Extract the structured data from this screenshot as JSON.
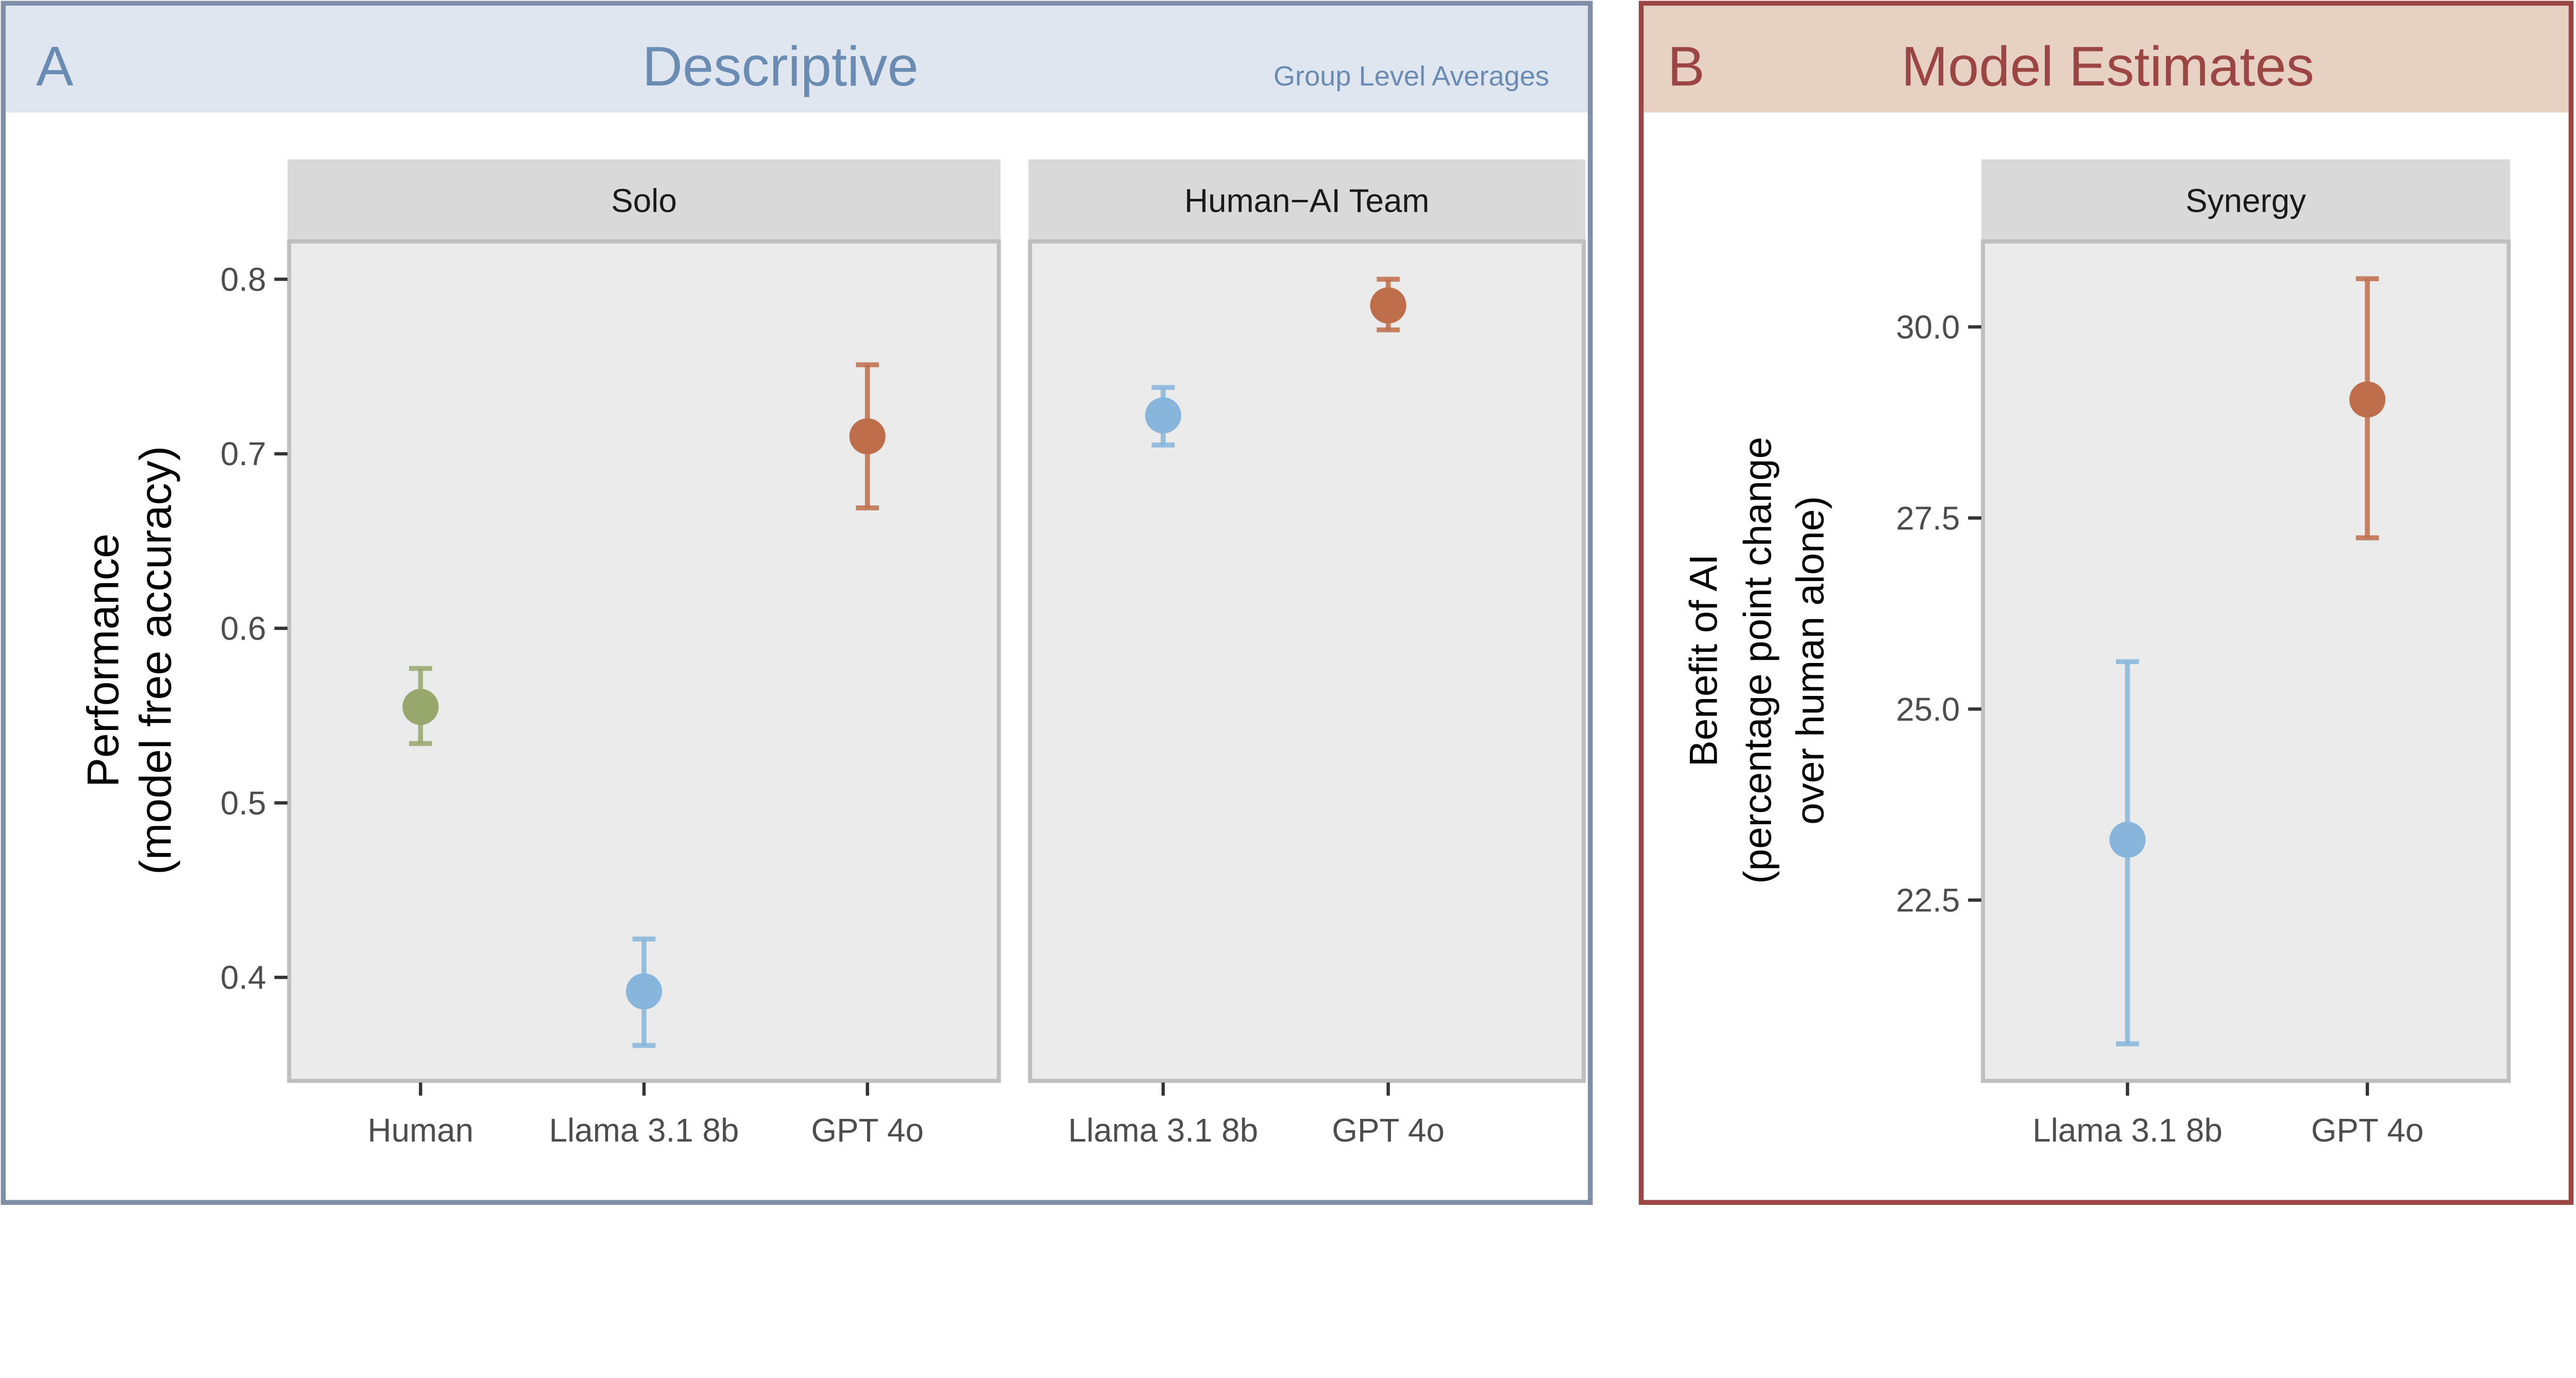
{
  "panel_a": {
    "letter": "A",
    "title": "Descriptive",
    "subtitle": "Group Level Averages",
    "header_color": "#dfe6ef",
    "border_color": "#7f8fa8",
    "title_color": "#6a8cb3"
  },
  "panel_b": {
    "letter": "B",
    "title": "Model Estimates",
    "header_color": "#e7d1c2",
    "border_color": "#9b4545",
    "title_color": "#9b4545"
  },
  "colors": {
    "Human": "#98a86d",
    "Llama 3.1 8b": "#87b5db",
    "GPT 4o": "#bf6e4b"
  },
  "chart_data": [
    {
      "type": "scatter",
      "ylabel": "Performance\n(model free accuracy)",
      "ylabel_lines": [
        "Performance",
        "(model free accuracy)"
      ],
      "ylim": [
        0.35,
        0.82
      ],
      "yticks": [
        0.4,
        0.5,
        0.6,
        0.7,
        0.8
      ],
      "ytick_labels": [
        "0.4",
        "0.5",
        "0.6",
        "0.7",
        "0.8"
      ],
      "facets": [
        {
          "label": "Solo",
          "categories": [
            "Human",
            "Llama 3.1 8b",
            "GPT 4o"
          ],
          "points": [
            {
              "x": "Human",
              "y": 0.555,
              "ymin": 0.534,
              "ymax": 0.577
            },
            {
              "x": "Llama 3.1 8b",
              "y": 0.392,
              "ymin": 0.361,
              "ymax": 0.422
            },
            {
              "x": "GPT 4o",
              "y": 0.71,
              "ymin": 0.669,
              "ymax": 0.751
            }
          ]
        },
        {
          "label": "Human−AI Team",
          "categories": [
            "Llama 3.1 8b",
            "GPT 4o"
          ],
          "points": [
            {
              "x": "Llama 3.1 8b",
              "y": 0.722,
              "ymin": 0.705,
              "ymax": 0.738
            },
            {
              "x": "GPT 4o",
              "y": 0.785,
              "ymin": 0.771,
              "ymax": 0.8
            }
          ]
        }
      ]
    },
    {
      "type": "scatter",
      "ylabel_lines": [
        "Benefit of AI",
        "(percentage point change",
        "over human alone)"
      ],
      "ylim": [
        20.3,
        31.4
      ],
      "yticks": [
        22.5,
        25.0,
        27.5,
        30.0
      ],
      "ytick_labels": [
        "22.5",
        "25.0",
        "27.5",
        "30.0"
      ],
      "facets": [
        {
          "label": "Synergy",
          "categories": [
            "Llama 3.1 8b",
            "GPT 4o"
          ],
          "points": [
            {
              "x": "Llama 3.1 8b",
              "y": 23.29,
              "ymin": 20.62,
              "ymax": 25.62
            },
            {
              "x": "GPT 4o",
              "y": 29.05,
              "ymin": 27.24,
              "ymax": 30.63
            }
          ]
        }
      ]
    }
  ]
}
